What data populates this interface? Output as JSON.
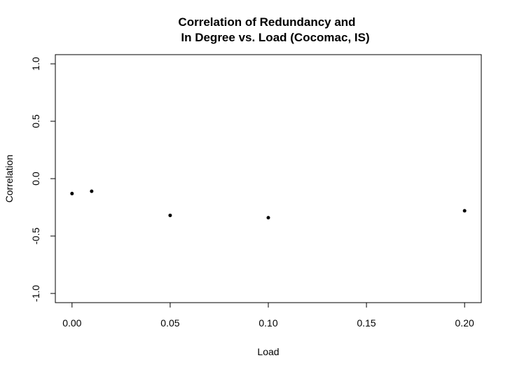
{
  "chart_data": {
    "type": "scatter",
    "title_lines": [
      "Correlation of Redundancy and",
      "In Degree vs. Load (Cocomac, IS)"
    ],
    "xlabel": "Load",
    "ylabel": "Correlation",
    "xlim": [
      -0.0085,
      0.2085
    ],
    "ylim": [
      -1.08,
      1.08
    ],
    "x_ticks": [
      0.0,
      0.05,
      0.1,
      0.15,
      0.2
    ],
    "x_tick_labels": [
      "0.00",
      "0.05",
      "0.10",
      "0.15",
      "0.20"
    ],
    "y_ticks": [
      -1.0,
      -0.5,
      0.0,
      0.5,
      1.0
    ],
    "y_tick_labels": [
      "-1.0",
      "-0.5",
      "0.0",
      "0.5",
      "1.0"
    ],
    "grid": false,
    "legend": "none",
    "marker_color": "#000000",
    "points": [
      {
        "x": 0.0,
        "y": -0.13
      },
      {
        "x": 0.01,
        "y": -0.11
      },
      {
        "x": 0.05,
        "y": -0.32
      },
      {
        "x": 0.1,
        "y": -0.34
      },
      {
        "x": 0.2,
        "y": -0.28
      }
    ]
  }
}
